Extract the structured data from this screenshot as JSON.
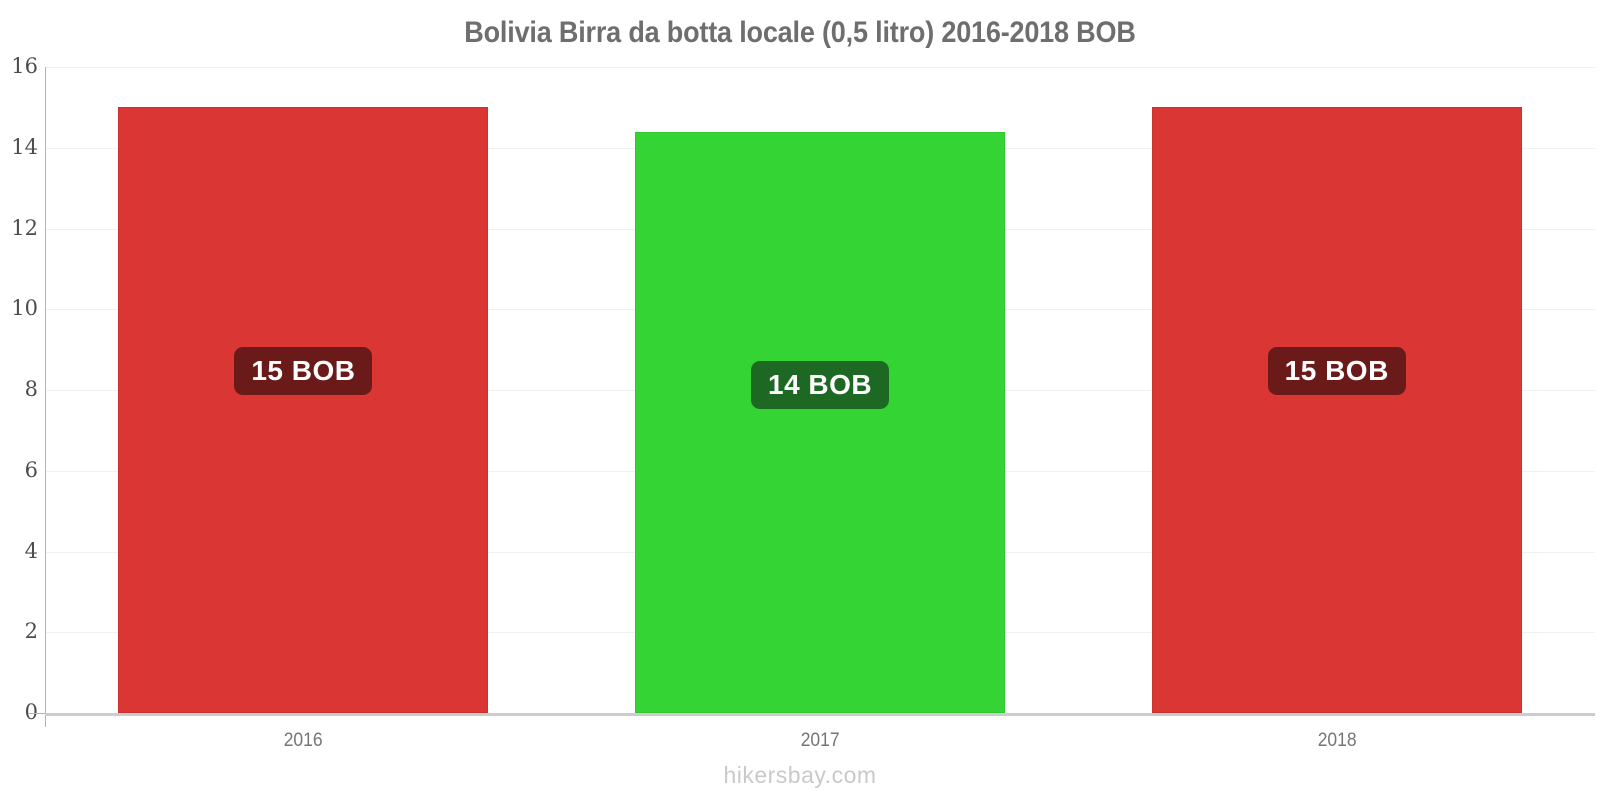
{
  "title": "Bolivia Birra da botta locale (0,5 litro) 2016-2018 BOB",
  "footer": "hikersbay.com",
  "chart_data": {
    "type": "bar",
    "title": "Bolivia Birra da botta locale (0,5 litro) 2016-2018 BOB",
    "categories": [
      "2016",
      "2017",
      "2018"
    ],
    "values": [
      15,
      14.4,
      15
    ],
    "bar_labels": [
      "15 BOB",
      "14 BOB",
      "15 BOB"
    ],
    "bar_colors": [
      "#d93634",
      "#33d434",
      "#d93634"
    ],
    "label_bg_colors": [
      "#6b1a1a",
      "#1d6923",
      "#6b1a1a"
    ],
    "unit": "BOB",
    "xlabel": "",
    "ylabel": "",
    "ylim": [
      0,
      16
    ],
    "yticks": [
      0,
      2,
      4,
      6,
      8,
      10,
      12,
      14,
      16
    ],
    "grid": true,
    "legend": "none",
    "source": "hikersbay.com"
  }
}
